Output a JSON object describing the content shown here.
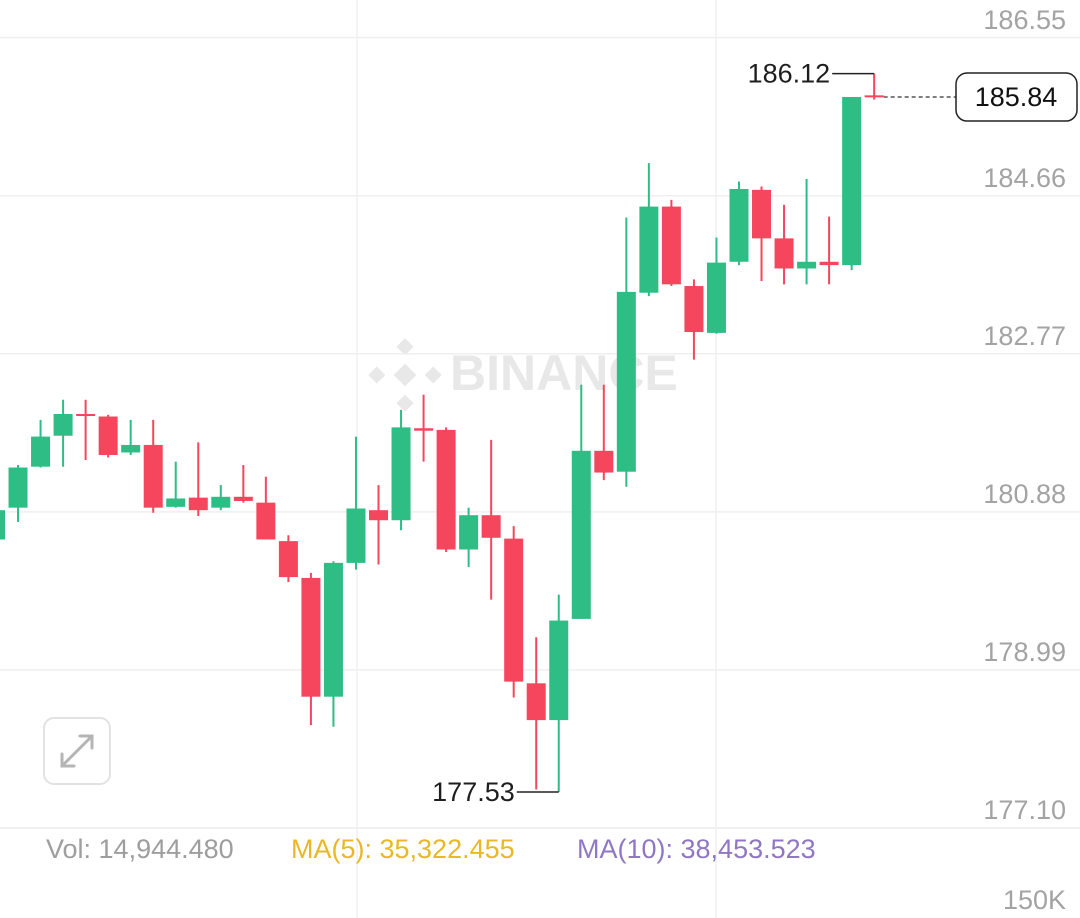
{
  "chart_data": {
    "type": "candlestick",
    "watermark": "BINANCE",
    "ylim": [
      177.1,
      187.0
    ],
    "yticks": [
      {
        "value": 177.1,
        "label": "177.10"
      },
      178.99,
      180.88,
      182.77,
      184.66,
      186.55
    ],
    "grid": true,
    "up_color": "#2ebd85",
    "down_color": "#f6465d",
    "open": [
      180.55,
      180.93,
      181.42,
      181.79,
      182.05,
      182.02,
      181.59,
      181.68,
      180.94,
      181.05,
      180.93,
      181.06,
      180.99,
      180.53,
      180.09,
      178.67,
      180.27,
      180.9,
      180.78,
      181.88,
      181.86,
      180.43,
      180.84,
      180.56,
      178.83,
      178.39,
      179.6,
      181.61,
      181.36,
      183.5,
      184.53,
      183.58,
      183.02,
      183.87,
      184.73,
      184.15,
      183.79,
      183.87,
      183.83,
      185.86
    ],
    "high": [
      180.96,
      181.44,
      181.98,
      182.22,
      182.22,
      182.04,
      181.98,
      181.98,
      181.48,
      181.71,
      181.2,
      181.44,
      181.3,
      180.6,
      180.15,
      180.29,
      181.78,
      181.2,
      182.1,
      182.28,
      181.89,
      180.93,
      181.74,
      180.71,
      179.38,
      179.89,
      182.4,
      182.4,
      184.4,
      185.05,
      184.61,
      183.66,
      184.16,
      184.83,
      184.77,
      184.55,
      184.86,
      184.41,
      185.84,
      186.12
    ],
    "low": [
      180.49,
      180.76,
      181.41,
      181.42,
      181.5,
      181.53,
      181.56,
      180.87,
      180.93,
      180.83,
      180.9,
      180.99,
      180.55,
      180.04,
      178.33,
      178.31,
      180.19,
      180.25,
      180.66,
      181.48,
      180.4,
      180.22,
      179.83,
      178.66,
      177.56,
      177.53,
      179.6,
      181.26,
      181.18,
      183.46,
      183.58,
      182.7,
      183.01,
      183.83,
      183.64,
      183.6,
      183.6,
      183.6,
      183.77,
      185.81
    ],
    "close": [
      180.9,
      181.41,
      181.78,
      182.05,
      182.03,
      181.56,
      181.68,
      180.93,
      181.04,
      180.9,
      181.06,
      181.01,
      180.55,
      180.1,
      178.67,
      180.27,
      180.92,
      180.78,
      181.89,
      181.85,
      180.43,
      180.84,
      180.57,
      178.85,
      178.39,
      179.58,
      181.61,
      181.35,
      183.51,
      184.53,
      183.6,
      183.03,
      183.86,
      184.74,
      184.15,
      183.79,
      183.87,
      183.83,
      185.84,
      185.84
    ],
    "high_label": 186.12,
    "low_label": 177.53,
    "last_price": 185.84,
    "legend": [
      {
        "text": "Vol: 14,944.480",
        "color": "#9e9e9e"
      },
      {
        "text": "MA(5): 35,322.455",
        "color": "#e9b824"
      },
      {
        "text": "MA(10): 38,453.523",
        "color": "#9077c4"
      }
    ],
    "volume_axis_label": "150K"
  }
}
